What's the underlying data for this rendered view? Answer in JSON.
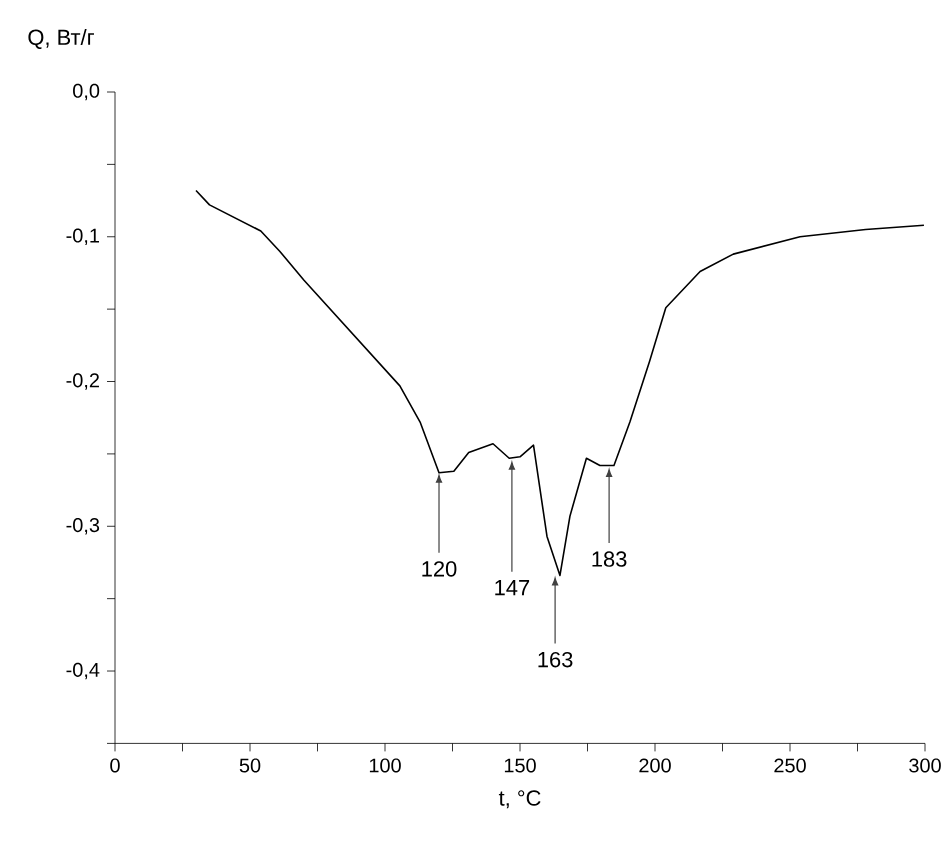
{
  "chart_data": {
    "type": "line",
    "xlabel": "t, °C",
    "ylabel": "Q, Вт/г",
    "x": [
      30,
      35,
      54,
      61,
      70,
      105.5,
      113,
      120,
      125.5,
      131,
      140,
      146,
      150,
      155,
      160,
      164.8,
      168.5,
      174.6,
      179.6,
      184.8,
      190.7,
      198,
      204,
      216.7,
      229,
      253.7,
      278,
      299.6
    ],
    "series": [
      {
        "color": "#000000",
        "values": [
          -0.068,
          -0.078,
          -0.096,
          -0.11,
          -0.13,
          -0.203,
          -0.228,
          -0.263,
          -0.262,
          -0.249,
          -0.243,
          -0.253,
          -0.252,
          -0.244,
          -0.307,
          -0.334,
          -0.293,
          -0.253,
          -0.258,
          -0.258,
          -0.228,
          -0.186,
          -0.149,
          -0.124,
          -0.112,
          -0.1,
          -0.095,
          -0.092
        ]
      }
    ],
    "xlim": [
      0,
      300
    ],
    "ylim": [
      -0.45,
      0
    ],
    "xticks": [
      0,
      {
        "value": 25,
        "label": null
      },
      50,
      {
        "value": 75,
        "label": null
      },
      100,
      {
        "value": 125,
        "label": null
      },
      150,
      {
        "value": 175,
        "label": null
      },
      200,
      {
        "value": 225,
        "label": null
      },
      250,
      {
        "value": 275,
        "label": null
      },
      300
    ],
    "yticks": [
      {
        "value": -0.45,
        "label": null
      },
      {
        "value": -0.4,
        "label": "-0,4"
      },
      {
        "value": -0.35,
        "label": null
      },
      {
        "value": -0.3,
        "label": "-0,3"
      },
      {
        "value": -0.25,
        "label": null
      },
      {
        "value": -0.2,
        "label": "-0,2"
      },
      {
        "value": -0.15,
        "label": null
      },
      {
        "value": -0.1,
        "label": "-0,1"
      },
      {
        "value": -0.05,
        "label": null
      },
      {
        "value": 0,
        "label": "0,0"
      }
    ],
    "annotations": [
      {
        "text": "120",
        "x": 120,
        "y": -0.263
      },
      {
        "text": "147",
        "x": 147,
        "y": -0.254
      },
      {
        "text": "163",
        "x": 163,
        "y": -0.334
      },
      {
        "text": "183",
        "x": 183,
        "y": -0.259
      }
    ],
    "grid": false,
    "marker": "none",
    "line_style": "solid"
  }
}
